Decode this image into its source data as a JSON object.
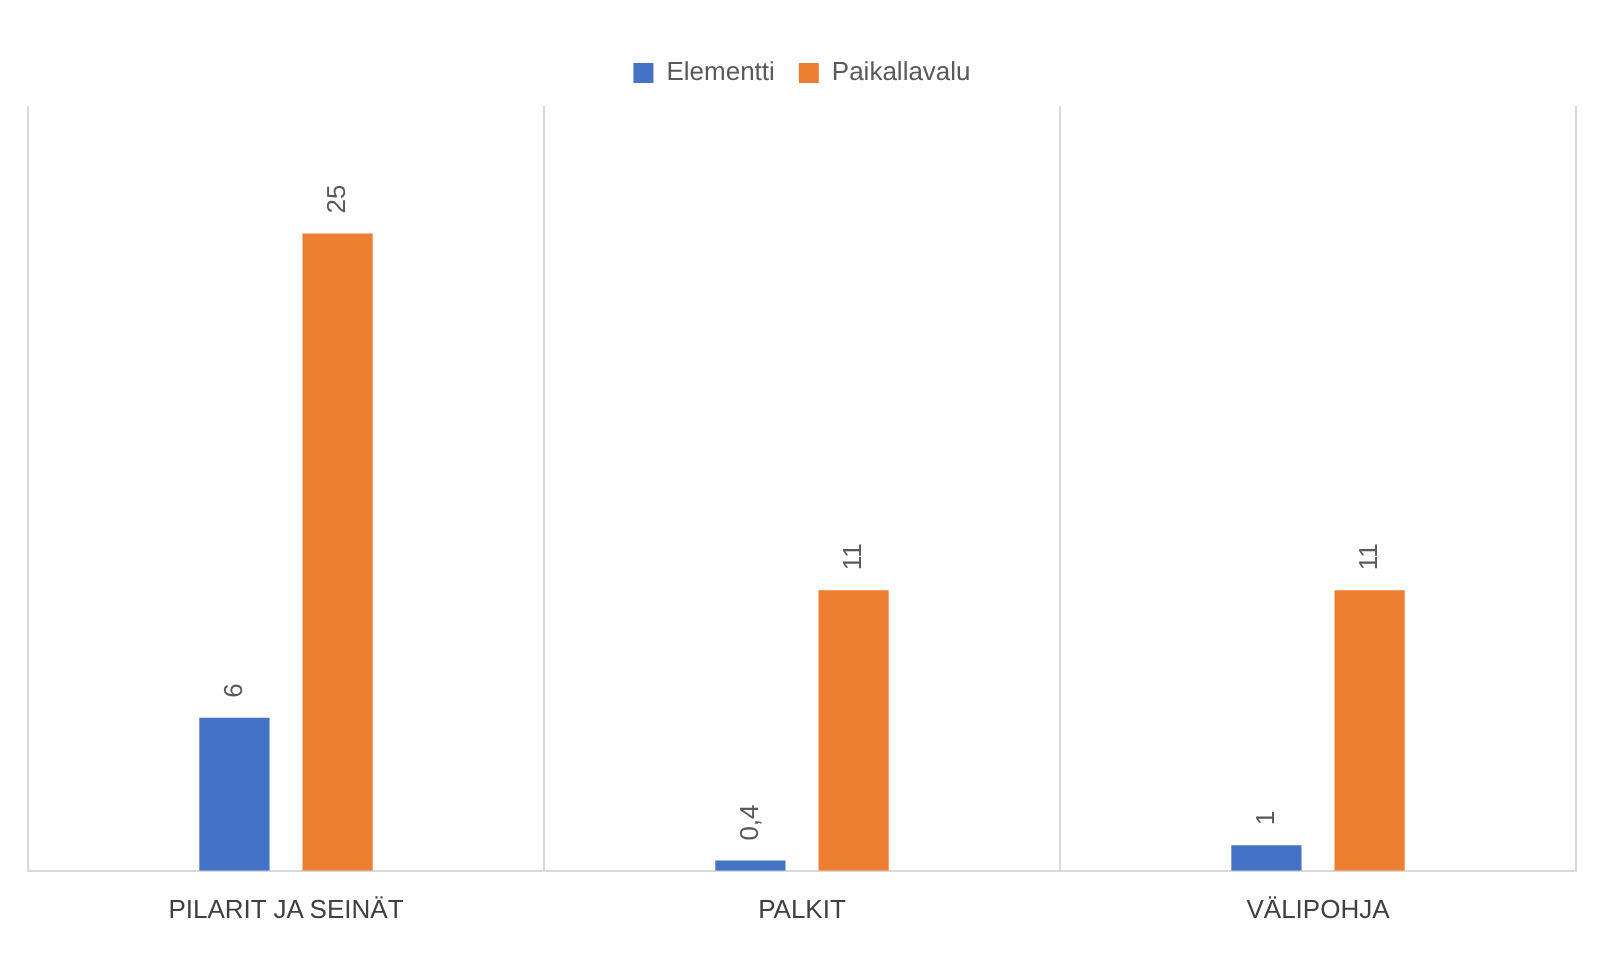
{
  "chart_data": {
    "type": "bar",
    "categories": [
      "PILARIT JA SEINÄT",
      "PALKIT",
      "VÄLIPOHJA"
    ],
    "series": [
      {
        "name": "Elementti",
        "color": "#4472c4",
        "values": [
          6,
          0.4,
          1
        ],
        "value_labels": [
          "6",
          "0,4",
          "1"
        ]
      },
      {
        "name": "Paikallavalu",
        "color": "#ed7d31",
        "values": [
          25,
          11,
          11
        ],
        "value_labels": [
          "25",
          "11",
          "11"
        ]
      }
    ],
    "grid": "x",
    "legend": "top",
    "tick_labels": "x"
  }
}
